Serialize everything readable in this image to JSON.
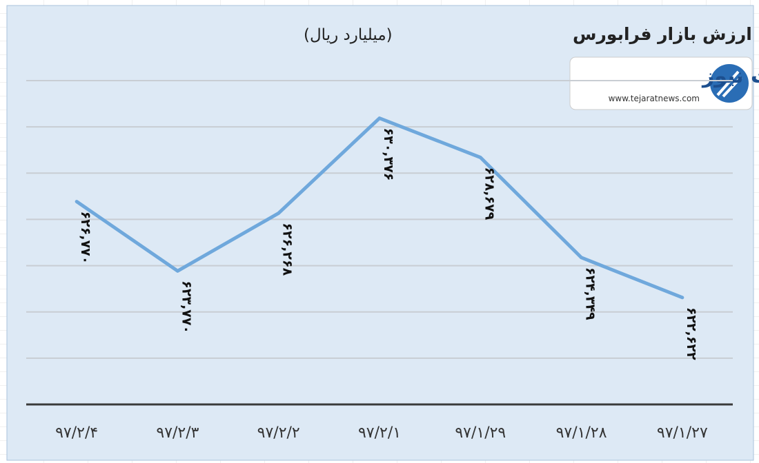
{
  "chart_data": {
    "type": "line",
    "title": "روند هفتگی ارزش بازار فرابورس",
    "subtitle": "(میلیارد ریال)",
    "categories": [
      "۹۷/۲/۴",
      "۹۷/۲/۳",
      "۹۷/۲/۲",
      "۹۷/۲/۱",
      "۹۷/۱/۲۹",
      "۹۷/۱/۲۸",
      "۹۷/۱/۲۷"
    ],
    "series": [
      {
        "name": null,
        "color": "#6fa8dc",
        "values": [
          626770,
          623770,
          626268,
          630376,
          628679,
          624349,
          622622
        ],
        "value_labels": [
          "۶۲۶,۷۷۰",
          "۶۲۳,۷۷۰",
          "۶۲۶,۲۶۸",
          "۶۳۰,۳۷۶",
          "۶۲۸,۶۷۹",
          "۶۲۴,۳۴۹",
          "۶۲۲,۶۲۲"
        ]
      }
    ],
    "ylim": [
      618000,
      632000
    ],
    "yticks": [
      620000,
      622000,
      624000,
      626000,
      628000,
      630000,
      632000
    ],
    "grid": true
  },
  "logo": {
    "name": "تجارت نیوز",
    "url": "www.tejaratnews.com"
  }
}
